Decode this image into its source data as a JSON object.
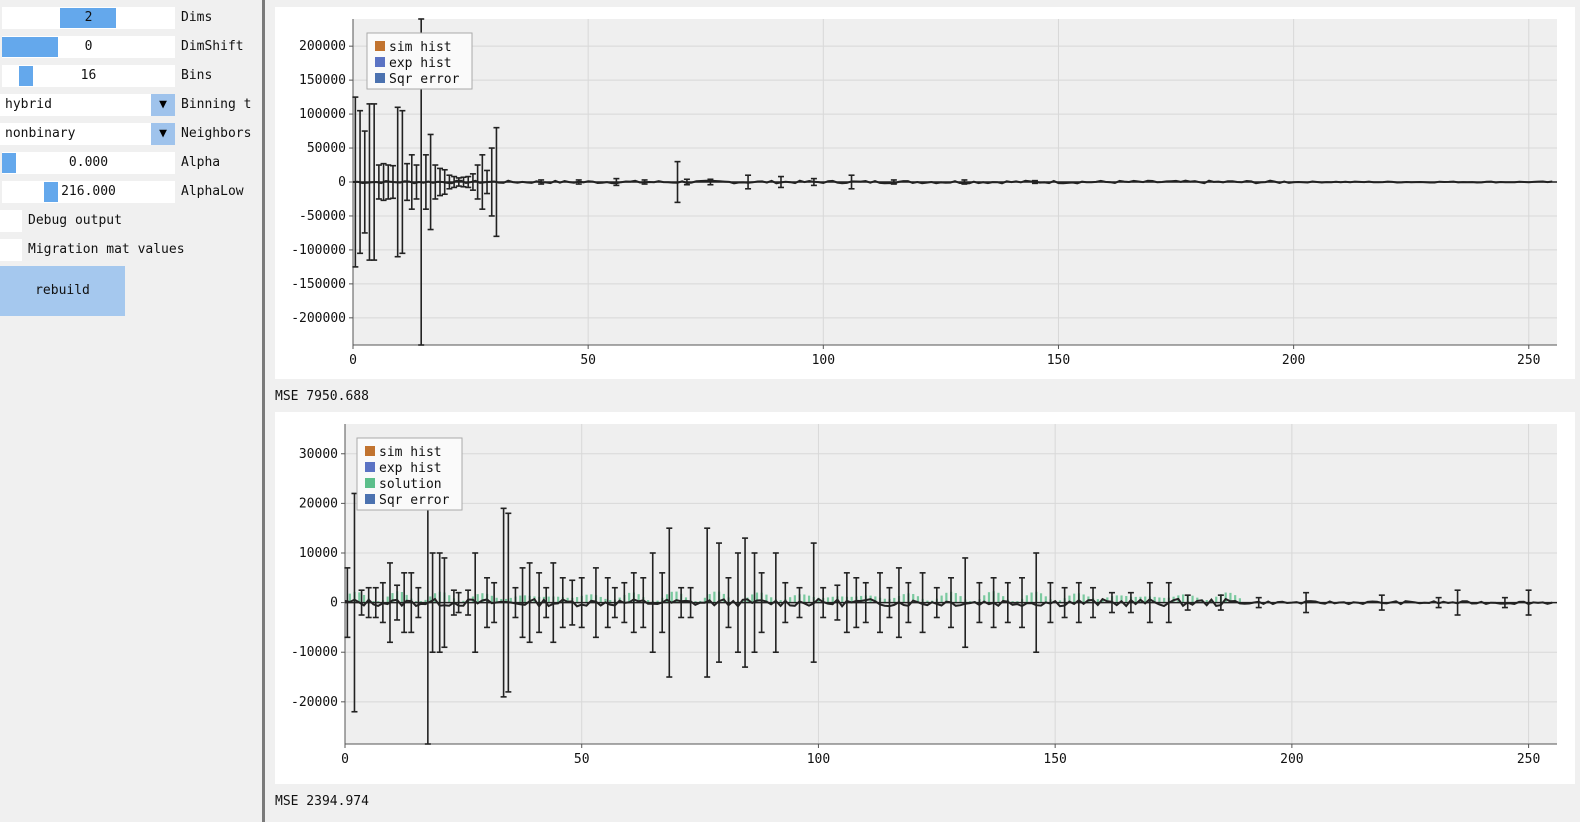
{
  "controls": {
    "dims": {
      "value": "2",
      "label": "Dims",
      "level": 0.33
    },
    "dimshift": {
      "value": "0",
      "label": "DimShift",
      "level": 0.33
    },
    "bins": {
      "value": "16",
      "label": "Bins",
      "level": 0.1
    },
    "binning": {
      "value": "hybrid",
      "label": "Binning t"
    },
    "neighbors": {
      "value": "nonbinary",
      "label": "Neighbors"
    },
    "alpha": {
      "value": "0.000",
      "label": "Alpha",
      "level": 0.0
    },
    "alphalow": {
      "value": "216.000",
      "label": "AlphaLow",
      "level": 0.24
    },
    "debug": {
      "label": "Debug output"
    },
    "migration": {
      "label": "Migration mat values"
    },
    "rebuild_label": "rebuild"
  },
  "colors": {
    "sim": "#c1732f",
    "exp": "#5b73c4",
    "solution": "#5cbf8b",
    "sqr": "#4c72b0",
    "slider": "#64a8ec"
  },
  "mse1": "MSE 7950.688",
  "mse2": "MSE 2394.974",
  "chart_data": [
    {
      "type": "bar",
      "xlim": [
        0,
        256
      ],
      "ylim": [
        -240000,
        240000
      ],
      "grid": true,
      "legend_position": "top-left",
      "xticks": [
        0,
        50,
        100,
        150,
        200,
        250
      ],
      "yticks": [
        200000,
        150000,
        100000,
        50000,
        0,
        -50000,
        -100000,
        -150000,
        -200000
      ],
      "series": [
        {
          "name": "sim hist",
          "color": "#c1732f"
        },
        {
          "name": "exp hist",
          "color": "#5b73c4"
        },
        {
          "name": "Sqr error",
          "color": "#4c72b0"
        }
      ],
      "error_bars": [
        {
          "x": 0.5,
          "err": 125000
        },
        {
          "x": 1.5,
          "err": 105000
        },
        {
          "x": 2.5,
          "err": 75000
        },
        {
          "x": 3.5,
          "err": 115000
        },
        {
          "x": 4.5,
          "err": 115000
        },
        {
          "x": 5.5,
          "err": 25000
        },
        {
          "x": 6.5,
          "err": 27000
        },
        {
          "x": 7.5,
          "err": 25000
        },
        {
          "x": 8.5,
          "err": 24000
        },
        {
          "x": 9.5,
          "err": 110000
        },
        {
          "x": 10.5,
          "err": 105000
        },
        {
          "x": 11.5,
          "err": 27000
        },
        {
          "x": 12.5,
          "err": 40000
        },
        {
          "x": 13.5,
          "err": 25000
        },
        {
          "x": 14.5,
          "err": 240000
        },
        {
          "x": 15.5,
          "err": 40000
        },
        {
          "x": 16.5,
          "err": 70000
        },
        {
          "x": 17.5,
          "err": 25000
        },
        {
          "x": 18.5,
          "err": 20000
        },
        {
          "x": 19.5,
          "err": 18000
        },
        {
          "x": 20.5,
          "err": 10000
        },
        {
          "x": 21.5,
          "err": 8000
        },
        {
          "x": 22.5,
          "err": 6000
        },
        {
          "x": 23.5,
          "err": 7000
        },
        {
          "x": 24.5,
          "err": 8000
        },
        {
          "x": 25.5,
          "err": 12000
        },
        {
          "x": 26.5,
          "err": 25000
        },
        {
          "x": 27.5,
          "err": 40000
        },
        {
          "x": 28.5,
          "err": 17000
        },
        {
          "x": 29.5,
          "err": 50000
        },
        {
          "x": 30.5,
          "err": 80000
        },
        {
          "x": 40,
          "err": 3000
        },
        {
          "x": 48,
          "err": 3000
        },
        {
          "x": 56,
          "err": 5000
        },
        {
          "x": 62,
          "err": 3000
        },
        {
          "x": 69,
          "err": 30000
        },
        {
          "x": 71,
          "err": 4000
        },
        {
          "x": 76,
          "err": 4000
        },
        {
          "x": 84,
          "err": 10000
        },
        {
          "x": 91,
          "err": 8000
        },
        {
          "x": 98,
          "err": 5000
        },
        {
          "x": 106,
          "err": 10000
        },
        {
          "x": 115,
          "err": 3000
        },
        {
          "x": 130,
          "err": 3000
        },
        {
          "x": 145,
          "err": 2000
        }
      ]
    },
    {
      "type": "bar",
      "xlim": [
        0,
        256
      ],
      "ylim": [
        -28500,
        36000
      ],
      "grid": true,
      "legend_position": "top-left",
      "xticks": [
        0,
        50,
        100,
        150,
        200,
        250
      ],
      "yticks": [
        30000,
        20000,
        10000,
        0,
        -10000,
        -20000
      ],
      "series": [
        {
          "name": "sim hist",
          "color": "#c1732f"
        },
        {
          "name": "exp hist",
          "color": "#5b73c4"
        },
        {
          "name": "solution",
          "color": "#5cbf8b"
        },
        {
          "name": "Sqr error",
          "color": "#4c72b0"
        }
      ],
      "error_bars": [
        {
          "x": 0.5,
          "err": 7000
        },
        {
          "x": 2,
          "err": 22000
        },
        {
          "x": 3.5,
          "err": 2500
        },
        {
          "x": 5,
          "err": 3000
        },
        {
          "x": 6.5,
          "err": 3000
        },
        {
          "x": 8,
          "err": 4000
        },
        {
          "x": 9.5,
          "err": 8000
        },
        {
          "x": 11,
          "err": 3500
        },
        {
          "x": 12.5,
          "err": 6000
        },
        {
          "x": 14,
          "err": 6000
        },
        {
          "x": 15.5,
          "err": 3000
        },
        {
          "x": 17.5,
          "err": 30000
        },
        {
          "x": 18.5,
          "err": 10000
        },
        {
          "x": 20,
          "err": 10000
        },
        {
          "x": 21,
          "err": 9000
        },
        {
          "x": 23,
          "err": 2500
        },
        {
          "x": 24,
          "err": 2000
        },
        {
          "x": 26,
          "err": 2500
        },
        {
          "x": 27.5,
          "err": 10000
        },
        {
          "x": 30,
          "err": 5000
        },
        {
          "x": 31.5,
          "err": 4000
        },
        {
          "x": 33.5,
          "err": 19000
        },
        {
          "x": 34.5,
          "err": 18000
        },
        {
          "x": 36,
          "err": 3000
        },
        {
          "x": 37.5,
          "err": 7000
        },
        {
          "x": 39,
          "err": 8000
        },
        {
          "x": 41,
          "err": 6000
        },
        {
          "x": 42.5,
          "err": 3000
        },
        {
          "x": 44,
          "err": 8000
        },
        {
          "x": 46,
          "err": 5000
        },
        {
          "x": 48,
          "err": 4500
        },
        {
          "x": 50,
          "err": 5000
        },
        {
          "x": 53,
          "err": 7000
        },
        {
          "x": 55.5,
          "err": 5000
        },
        {
          "x": 57,
          "err": 3000
        },
        {
          "x": 59,
          "err": 4000
        },
        {
          "x": 61,
          "err": 6000
        },
        {
          "x": 63,
          "err": 5000
        },
        {
          "x": 65,
          "err": 10000
        },
        {
          "x": 67,
          "err": 6000
        },
        {
          "x": 68.5,
          "err": 15000
        },
        {
          "x": 71,
          "err": 3000
        },
        {
          "x": 73,
          "err": 3000
        },
        {
          "x": 76.5,
          "err": 15000
        },
        {
          "x": 79,
          "err": 12000
        },
        {
          "x": 81,
          "err": 5000
        },
        {
          "x": 83,
          "err": 10000
        },
        {
          "x": 84.5,
          "err": 13000
        },
        {
          "x": 86.5,
          "err": 10000
        },
        {
          "x": 88,
          "err": 6000
        },
        {
          "x": 91,
          "err": 10000
        },
        {
          "x": 93,
          "err": 4000
        },
        {
          "x": 96,
          "err": 3000
        },
        {
          "x": 99,
          "err": 12000
        },
        {
          "x": 101,
          "err": 3000
        },
        {
          "x": 104,
          "err": 3500
        },
        {
          "x": 106,
          "err": 6000
        },
        {
          "x": 108,
          "err": 5000
        },
        {
          "x": 110,
          "err": 4000
        },
        {
          "x": 113,
          "err": 6000
        },
        {
          "x": 115,
          "err": 3000
        },
        {
          "x": 117,
          "err": 7000
        },
        {
          "x": 119,
          "err": 4000
        },
        {
          "x": 122,
          "err": 6000
        },
        {
          "x": 125,
          "err": 3000
        },
        {
          "x": 128,
          "err": 5000
        },
        {
          "x": 131,
          "err": 9000
        },
        {
          "x": 134,
          "err": 4000
        },
        {
          "x": 137,
          "err": 5000
        },
        {
          "x": 140,
          "err": 4000
        },
        {
          "x": 143,
          "err": 5000
        },
        {
          "x": 146,
          "err": 10000
        },
        {
          "x": 149,
          "err": 4000
        },
        {
          "x": 152,
          "err": 3000
        },
        {
          "x": 155,
          "err": 4000
        },
        {
          "x": 158,
          "err": 3000
        },
        {
          "x": 162,
          "err": 2000
        },
        {
          "x": 166,
          "err": 2000
        },
        {
          "x": 170,
          "err": 4000
        },
        {
          "x": 174,
          "err": 4000
        },
        {
          "x": 178,
          "err": 1500
        },
        {
          "x": 185,
          "err": 1500
        },
        {
          "x": 193,
          "err": 1000
        },
        {
          "x": 203,
          "err": 2000
        },
        {
          "x": 219,
          "err": 1500
        },
        {
          "x": 231,
          "err": 1000
        },
        {
          "x": 235,
          "err": 2500
        },
        {
          "x": 245,
          "err": 1000
        },
        {
          "x": 250,
          "err": 2500
        }
      ]
    }
  ]
}
